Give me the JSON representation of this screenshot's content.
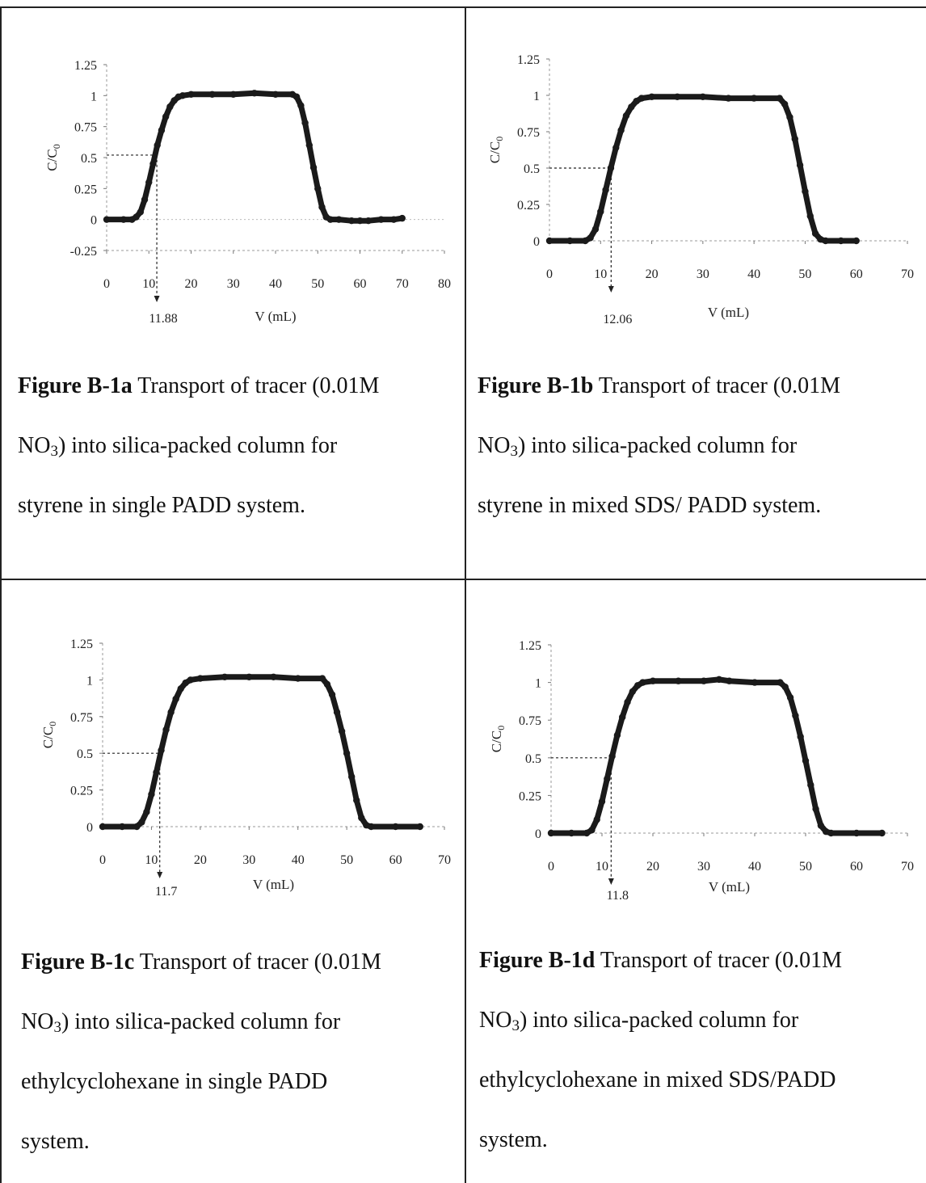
{
  "figures": [
    {
      "id": "a",
      "caption": {
        "label": "Figure B-1a",
        "line1_text": " Transport of tracer (0.01M",
        "line2_pre": "NO",
        "line2_sub": "3",
        "line2_post": ") into silica-packed column for",
        "line3": "styrene in single PADD system.",
        "line4": ""
      },
      "chart_data": {
        "type": "scatter",
        "xlabel": "V (mL)",
        "ylabel": "C/C",
        "ylabel_sub": "0",
        "xlim": [
          0,
          80
        ],
        "ylim": [
          -0.25,
          1.25
        ],
        "x_ticks": [
          0,
          10,
          20,
          30,
          40,
          50,
          60,
          70,
          80
        ],
        "y_ticks": [
          -0.25,
          0,
          0.25,
          0.5,
          0.75,
          1,
          1.25
        ],
        "x_tick_labels": [
          "0",
          "10",
          "20",
          "30",
          "40",
          "50",
          "60",
          "70",
          "80"
        ],
        "y_tick_labels": [
          "-0.25",
          "0",
          "0.25",
          "0.5",
          "0.75",
          "1",
          "1.25"
        ],
        "half_point": {
          "x": 11.88,
          "y": 0.52,
          "label": "11.88"
        },
        "series": [
          {
            "values": [
              [
                0,
                0
              ],
              [
                4,
                0
              ],
              [
                6,
                0
              ],
              [
                7,
                0.02
              ],
              [
                8,
                0.06
              ],
              [
                9,
                0.16
              ],
              [
                10,
                0.3
              ],
              [
                11,
                0.45
              ],
              [
                12,
                0.6
              ],
              [
                13,
                0.72
              ],
              [
                14,
                0.83
              ],
              [
                15,
                0.91
              ],
              [
                16,
                0.96
              ],
              [
                17,
                0.99
              ],
              [
                18,
                1.0
              ],
              [
                20,
                1.01
              ],
              [
                25,
                1.01
              ],
              [
                30,
                1.01
              ],
              [
                35,
                1.02
              ],
              [
                40,
                1.01
              ],
              [
                44,
                1.01
              ],
              [
                45,
                0.99
              ],
              [
                46,
                0.92
              ],
              [
                47,
                0.78
              ],
              [
                48,
                0.6
              ],
              [
                49,
                0.42
              ],
              [
                50,
                0.25
              ],
              [
                51,
                0.1
              ],
              [
                52,
                0.02
              ],
              [
                53,
                0.0
              ],
              [
                55,
                0.0
              ],
              [
                58,
                -0.01
              ],
              [
                60,
                -0.01
              ],
              [
                62,
                -0.01
              ],
              [
                65,
                0.0
              ],
              [
                68,
                0.0
              ],
              [
                70,
                0.01
              ]
            ]
          }
        ]
      }
    },
    {
      "id": "b",
      "caption": {
        "label": "Figure B-1b",
        "line1_text": " Transport of tracer (0.01M",
        "line2_pre": "NO",
        "line2_sub": "3",
        "line2_post": ") into silica-packed column for",
        "line3": "styrene in mixed SDS/ PADD system.",
        "line4": ""
      },
      "chart_data": {
        "type": "scatter",
        "xlabel": "V (mL)",
        "ylabel": "C/C",
        "ylabel_sub": "0",
        "xlim": [
          0,
          70
        ],
        "ylim": [
          0,
          1.25
        ],
        "x_ticks": [
          0,
          10,
          20,
          30,
          40,
          50,
          60,
          70
        ],
        "y_ticks": [
          0,
          0.25,
          0.5,
          0.75,
          1,
          1.25
        ],
        "x_tick_labels": [
          "0",
          "10",
          "20",
          "30",
          "40",
          "50",
          "60",
          "70"
        ],
        "y_tick_labels": [
          "0",
          "0.25",
          "0.5",
          "0.75",
          "1",
          "1.25"
        ],
        "half_point": {
          "x": 12.06,
          "y": 0.5,
          "label": "12.06"
        },
        "series": [
          {
            "values": [
              [
                0,
                0
              ],
              [
                4,
                0
              ],
              [
                7,
                0
              ],
              [
                8,
                0.02
              ],
              [
                9,
                0.08
              ],
              [
                10,
                0.2
              ],
              [
                11,
                0.35
              ],
              [
                12,
                0.5
              ],
              [
                13,
                0.64
              ],
              [
                14,
                0.76
              ],
              [
                15,
                0.86
              ],
              [
                16,
                0.92
              ],
              [
                17,
                0.96
              ],
              [
                18,
                0.98
              ],
              [
                20,
                0.99
              ],
              [
                25,
                0.99
              ],
              [
                30,
                0.99
              ],
              [
                35,
                0.98
              ],
              [
                40,
                0.98
              ],
              [
                45,
                0.98
              ],
              [
                46,
                0.94
              ],
              [
                47,
                0.85
              ],
              [
                48,
                0.7
              ],
              [
                49,
                0.52
              ],
              [
                50,
                0.34
              ],
              [
                51,
                0.17
              ],
              [
                52,
                0.05
              ],
              [
                53,
                0.01
              ],
              [
                54,
                0.0
              ],
              [
                57,
                0.0
              ],
              [
                60,
                0.0
              ]
            ]
          }
        ]
      }
    },
    {
      "id": "c",
      "caption": {
        "label": "Figure B-1c",
        "line1_text": " Transport of tracer (0.01M",
        "line2_pre": "NO",
        "line2_sub": "3",
        "line2_post": ") into silica-packed column for",
        "line3": "ethylcyclohexane in single PADD",
        "line4": "system."
      },
      "chart_data": {
        "type": "scatter",
        "xlabel": "V (mL)",
        "ylabel": "C/C",
        "ylabel_sub": "0",
        "xlim": [
          0,
          70
        ],
        "ylim": [
          0,
          1.25
        ],
        "x_ticks": [
          0,
          10,
          20,
          30,
          40,
          50,
          60,
          70
        ],
        "y_ticks": [
          0,
          0.25,
          0.5,
          0.75,
          1,
          1.25
        ],
        "x_tick_labels": [
          "0",
          "10",
          "20",
          "30",
          "40",
          "50",
          "60",
          "70"
        ],
        "y_tick_labels": [
          "0",
          "0.25",
          "0.5",
          "0.75",
          "1",
          "1.25"
        ],
        "half_point": {
          "x": 11.7,
          "y": 0.5,
          "label": "11.7"
        },
        "series": [
          {
            "values": [
              [
                0,
                0
              ],
              [
                4,
                0
              ],
              [
                7,
                0
              ],
              [
                8,
                0.03
              ],
              [
                9,
                0.1
              ],
              [
                10,
                0.22
              ],
              [
                11,
                0.37
              ],
              [
                12,
                0.52
              ],
              [
                13,
                0.66
              ],
              [
                14,
                0.78
              ],
              [
                15,
                0.87
              ],
              [
                16,
                0.94
              ],
              [
                17,
                0.98
              ],
              [
                18,
                1.0
              ],
              [
                20,
                1.01
              ],
              [
                25,
                1.02
              ],
              [
                30,
                1.02
              ],
              [
                35,
                1.02
              ],
              [
                40,
                1.01
              ],
              [
                45,
                1.01
              ],
              [
                46,
                0.97
              ],
              [
                47,
                0.9
              ],
              [
                48,
                0.78
              ],
              [
                49,
                0.65
              ],
              [
                50,
                0.5
              ],
              [
                51,
                0.34
              ],
              [
                52,
                0.18
              ],
              [
                53,
                0.06
              ],
              [
                54,
                0.01
              ],
              [
                55,
                0.0
              ],
              [
                60,
                0.0
              ],
              [
                65,
                0.0
              ]
            ]
          }
        ]
      }
    },
    {
      "id": "d",
      "caption": {
        "label": "Figure B-1d",
        "line1_text": " Transport of tracer (0.01M",
        "line2_pre": "NO",
        "line2_sub": "3",
        "line2_post": ") into silica-packed column for",
        "line3": "ethylcyclohexane in mixed SDS/PADD",
        "line4": "system."
      },
      "chart_data": {
        "type": "scatter",
        "xlabel": "V (mL)",
        "ylabel": "C/C",
        "ylabel_sub": "0",
        "xlim": [
          0,
          70
        ],
        "ylim": [
          0,
          1.25
        ],
        "x_ticks": [
          0,
          10,
          20,
          30,
          40,
          50,
          60,
          70
        ],
        "y_ticks": [
          0,
          0.25,
          0.5,
          0.75,
          1,
          1.25
        ],
        "x_tick_labels": [
          "0",
          "10",
          "20",
          "30",
          "40",
          "50",
          "60",
          "70"
        ],
        "y_tick_labels": [
          "0",
          "0.25",
          "0.5",
          "0.75",
          "1",
          "1.25"
        ],
        "half_point": {
          "x": 11.8,
          "y": 0.5,
          "label": "11.8"
        },
        "series": [
          {
            "values": [
              [
                0,
                0
              ],
              [
                4,
                0
              ],
              [
                7,
                0
              ],
              [
                8,
                0.02
              ],
              [
                9,
                0.09
              ],
              [
                10,
                0.21
              ],
              [
                11,
                0.36
              ],
              [
                12,
                0.51
              ],
              [
                13,
                0.65
              ],
              [
                14,
                0.77
              ],
              [
                15,
                0.87
              ],
              [
                16,
                0.94
              ],
              [
                17,
                0.98
              ],
              [
                18,
                1.0
              ],
              [
                20,
                1.01
              ],
              [
                25,
                1.01
              ],
              [
                30,
                1.01
              ],
              [
                33,
                1.02
              ],
              [
                35,
                1.01
              ],
              [
                40,
                1.0
              ],
              [
                45,
                1.0
              ],
              [
                46,
                0.97
              ],
              [
                47,
                0.9
              ],
              [
                48,
                0.78
              ],
              [
                49,
                0.64
              ],
              [
                50,
                0.48
              ],
              [
                51,
                0.32
              ],
              [
                52,
                0.16
              ],
              [
                53,
                0.05
              ],
              [
                54,
                0.01
              ],
              [
                55,
                0.0
              ],
              [
                60,
                0.0
              ],
              [
                65,
                0.0
              ]
            ]
          }
        ]
      }
    }
  ]
}
